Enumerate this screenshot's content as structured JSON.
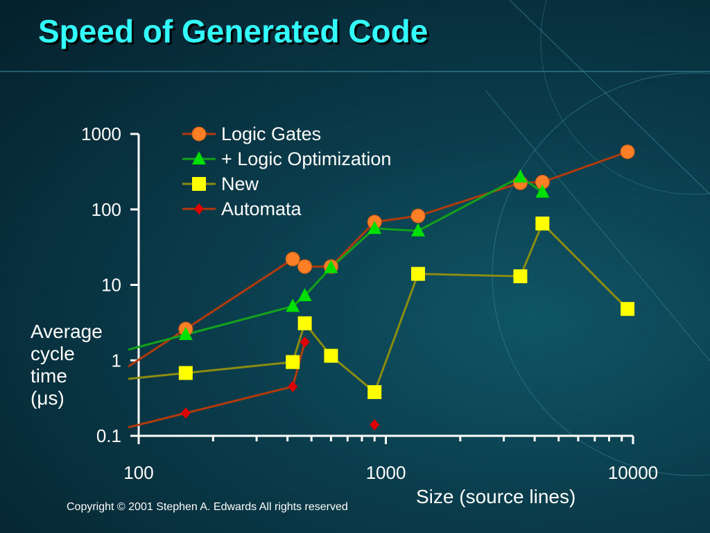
{
  "slide": {
    "title": "Speed of Generated Code",
    "copyright": "Copyright © 2001 Stephen A. Edwards  All rights reserved"
  },
  "chart_data": {
    "type": "line",
    "xlabel": "Size (source lines)",
    "ylabel_lines": [
      "Average",
      "cycle",
      "time",
      "(μs)"
    ],
    "x_scale": "log",
    "y_scale": "log",
    "xlim": [
      100,
      10000
    ],
    "ylim": [
      0.1,
      1000
    ],
    "x_ticks": [
      100,
      1000,
      10000
    ],
    "x_tick_labels": [
      "100",
      "1000",
      "10000"
    ],
    "y_ticks": [
      0.1,
      1,
      10,
      100,
      1000
    ],
    "y_tick_labels": [
      "0.1",
      "1",
      "10",
      "100",
      "1000"
    ],
    "grid": false,
    "legend_position": "top-left",
    "series": [
      {
        "name": "Logic Gates",
        "marker": "circle",
        "line_color": "#b33a0a",
        "marker_color": "#ff7f27",
        "x": [
          155,
          420,
          470,
          600,
          900,
          1350,
          3500,
          4300,
          9500
        ],
        "y": [
          2.6,
          22,
          17.5,
          17.5,
          68,
          82,
          225,
          230,
          580
        ]
      },
      {
        "name": "+ Logic Optimization",
        "marker": "triangle",
        "line_color": "#13a31a",
        "marker_color": "#00e000",
        "x": [
          155,
          420,
          470,
          600,
          900,
          1350,
          3500,
          4300
        ],
        "y": [
          2.2,
          5.2,
          7.2,
          17,
          56,
          52,
          270,
          170
        ]
      },
      {
        "name": "New",
        "marker": "square",
        "line_color": "#8c8c10",
        "marker_color": "#ffff00",
        "x": [
          155,
          420,
          470,
          600,
          900,
          1350,
          3500,
          4300,
          9500
        ],
        "y": [
          0.68,
          0.95,
          3.1,
          1.15,
          0.38,
          14,
          13,
          65,
          4.8
        ]
      },
      {
        "name": "Automata",
        "marker": "diamond",
        "line_color": "#b33a0a",
        "marker_color": "#e00000",
        "x": [
          155,
          420,
          470
        ],
        "y": [
          0.2,
          0.45,
          1.75
        ],
        "extra_points": {
          "x": [
            900
          ],
          "y": [
            0.14
          ]
        }
      }
    ]
  }
}
